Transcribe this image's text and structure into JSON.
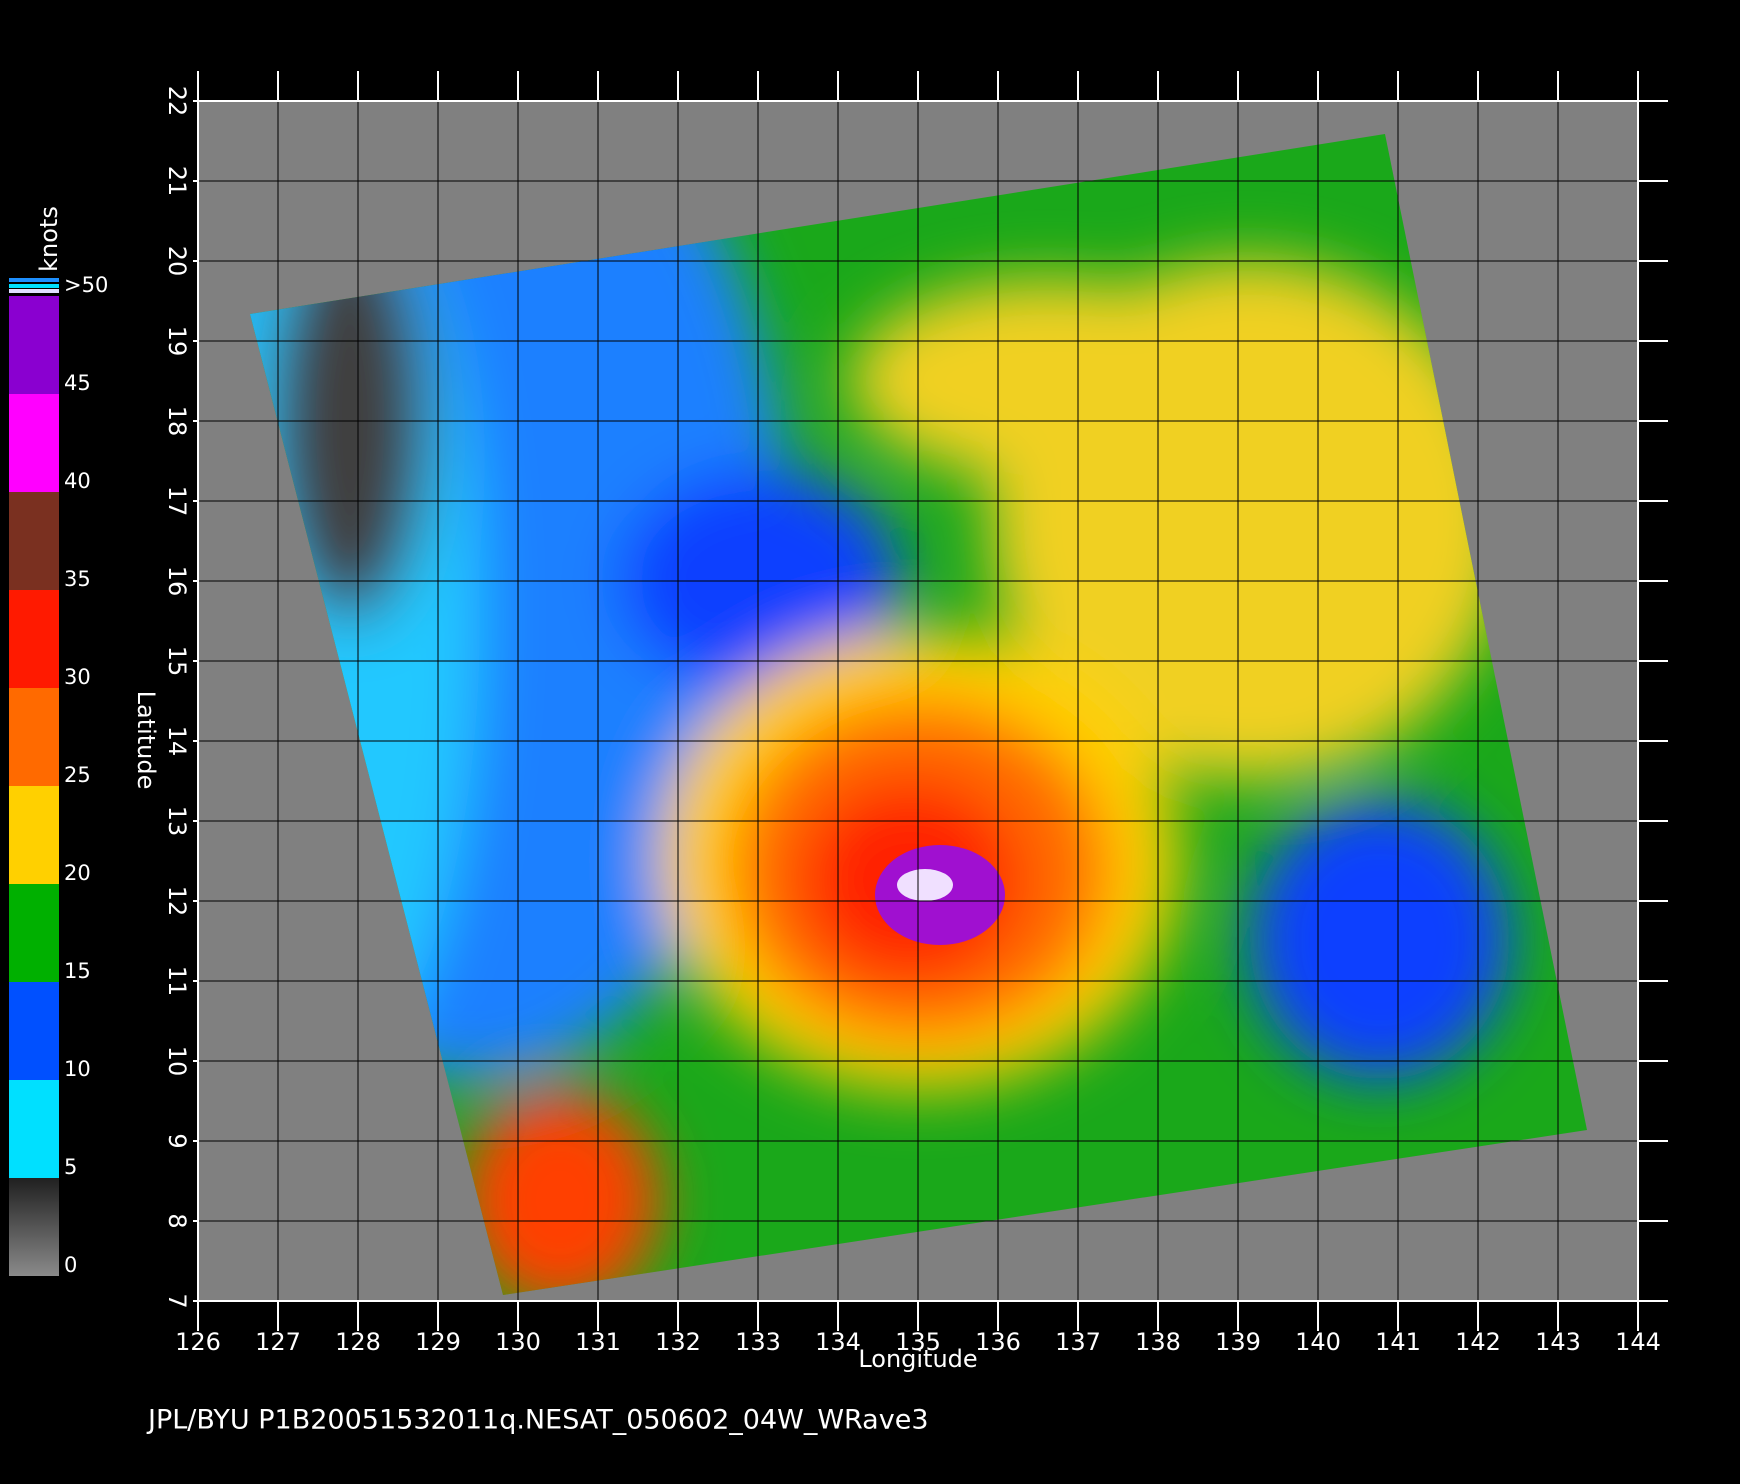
{
  "chart_data": {
    "type": "map",
    "xlabel": "Longitude",
    "ylabel": "Latitude",
    "xlim": [
      126,
      144
    ],
    "ylim": [
      7,
      22
    ],
    "xticks": [
      126,
      127,
      128,
      129,
      130,
      131,
      132,
      133,
      134,
      135,
      136,
      137,
      138,
      139,
      140,
      141,
      142,
      143,
      144
    ],
    "yticks": [
      7,
      8,
      9,
      10,
      11,
      12,
      13,
      14,
      15,
      16,
      17,
      18,
      19,
      20,
      21,
      22
    ],
    "grid": true,
    "colorbar": {
      "title": "knots",
      "ticks": [
        0,
        5,
        10,
        15,
        20,
        25,
        30,
        35,
        40,
        45,
        {
          "value": 50,
          "label": ">50"
        }
      ],
      "colors": [
        "#505050",
        "#00e0ff",
        "#0050ff",
        "#00b000",
        "#ffd000",
        "#ff6a00",
        "#ff1a00",
        "#7a3020",
        "#ff00ff",
        "#8a00d0"
      ]
    },
    "footer": "JPL/BYU  P1B20051532011q.NESAT_050602_04W_WRave3"
  }
}
